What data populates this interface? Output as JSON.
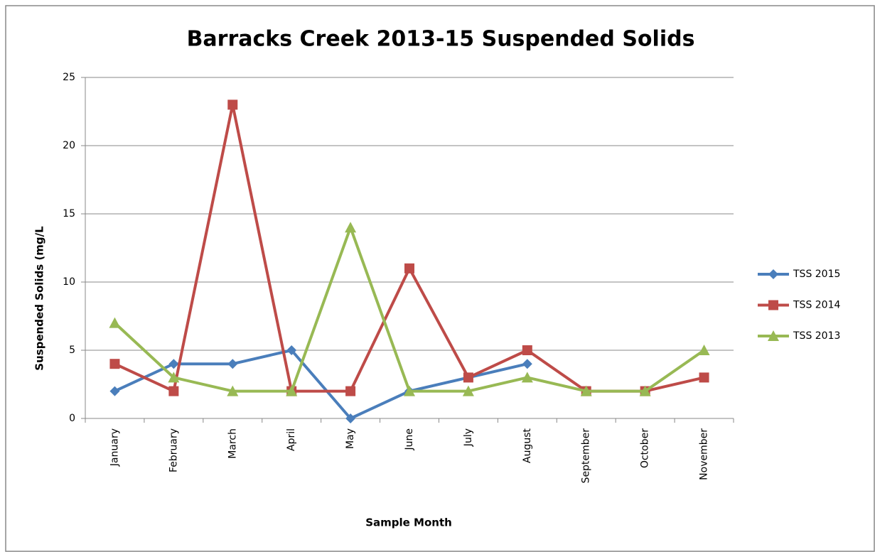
{
  "chart_data": {
    "type": "line",
    "title": "Barracks Creek 2013-15 Suspended Solids",
    "x_label": "Sample Month",
    "y_label": "Suspended Solids (mg/L",
    "categories": [
      "January",
      "February",
      "March",
      "April",
      "May",
      "June",
      "July",
      "August",
      "September",
      "October",
      "November"
    ],
    "series": [
      {
        "name": "TSS 2015",
        "color": "#4a7ebb",
        "marker": "diamond",
        "values": [
          2,
          4,
          4,
          5,
          0,
          2,
          3,
          4,
          null,
          null,
          null
        ]
      },
      {
        "name": "TSS 2014",
        "color": "#be4b48",
        "marker": "square",
        "values": [
          4,
          2,
          23,
          2,
          2,
          11,
          3,
          5,
          2,
          2,
          3
        ]
      },
      {
        "name": "TSS 2013",
        "color": "#98b954",
        "marker": "triangle",
        "values": [
          7,
          3,
          2,
          2,
          14,
          2,
          2,
          3,
          2,
          2,
          5
        ]
      }
    ],
    "ylim": [
      0,
      25
    ],
    "yticks": [
      0,
      5,
      10,
      15,
      20,
      25
    ],
    "grid": true,
    "legend": "right"
  }
}
